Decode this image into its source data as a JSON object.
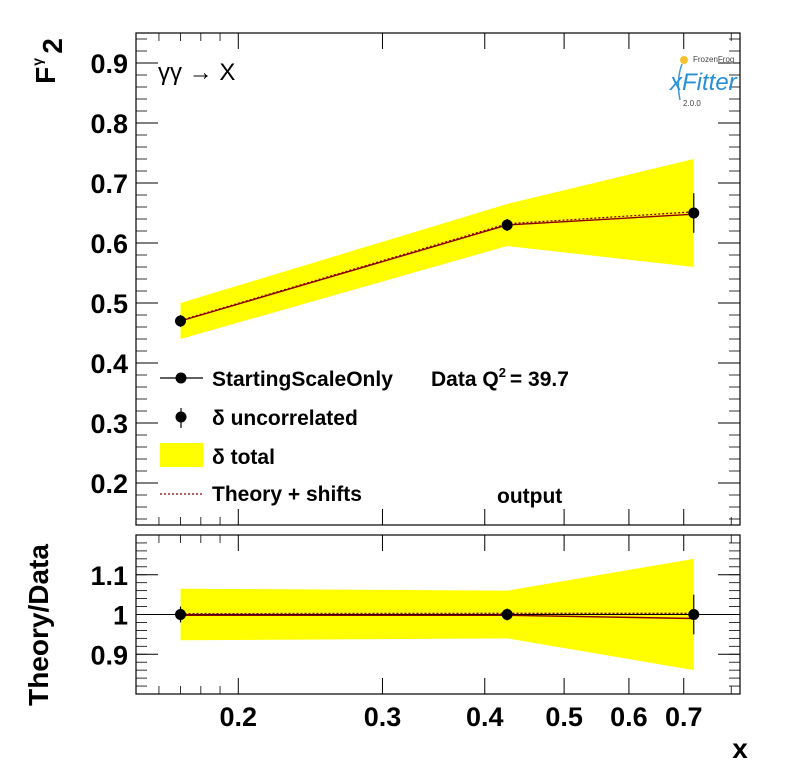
{
  "chart_data": [
    {
      "type": "line",
      "panel": "main",
      "ylabel": "F",
      "ylabel_sub": "2",
      "ylabel_sup": "γ",
      "process_label": "γγ → X",
      "x_scale": "log",
      "xlim": [
        0.15,
        0.82
      ],
      "ylim": [
        0.13,
        0.95
      ],
      "ytick_labels": [
        "0.2",
        "0.3",
        "0.4",
        "0.5",
        "0.6",
        "0.7",
        "0.8",
        "0.9"
      ],
      "yticks": [
        0.2,
        0.3,
        0.4,
        0.5,
        0.6,
        0.7,
        0.8,
        0.9
      ],
      "x": [
        0.17,
        0.426,
        0.72
      ],
      "series": [
        {
          "name": "StartingScaleOnly",
          "values": [
            0.47,
            0.63,
            0.648
          ]
        },
        {
          "name": "δ uncorrelated",
          "values": [
            0.47,
            0.63,
            0.65
          ],
          "errors": [
            0.01,
            0.01,
            0.033
          ]
        },
        {
          "name": "δ total",
          "lower": [
            0.44,
            0.595,
            0.56
          ],
          "upper": [
            0.5,
            0.665,
            0.74
          ]
        },
        {
          "name": "Theory + shifts",
          "values": [
            0.471,
            0.632,
            0.652
          ]
        }
      ],
      "legend_header": "Data Q",
      "legend_header_sup": "2",
      "legend_header_value": "= 39.7",
      "annotation": "output",
      "legend_position": "bottom-left",
      "colors": {
        "band": "#ffff00",
        "theory": "#8b0000",
        "data": "#000000"
      }
    },
    {
      "type": "line",
      "panel": "ratio",
      "ylabel": "Theory/Data",
      "xlabel": "x",
      "x_scale": "log",
      "xlim": [
        0.15,
        0.82
      ],
      "ylim": [
        0.8,
        1.2
      ],
      "ytick_labels": [
        "0.9",
        "1",
        "1.1"
      ],
      "yticks": [
        0.9,
        1.0,
        1.1
      ],
      "xtick_labels": [
        "0.2",
        "0.3",
        "0.4",
        "0.5",
        "0.6",
        "0.7"
      ],
      "xticks": [
        0.2,
        0.3,
        0.4,
        0.5,
        0.6,
        0.7
      ],
      "x": [
        0.17,
        0.426,
        0.72
      ],
      "series": [
        {
          "name": "StartingScaleOnly",
          "values": [
            0.998,
            0.998,
            0.99
          ]
        },
        {
          "name": "δ uncorrelated",
          "values": [
            1.0,
            1.0,
            1.0
          ],
          "errors": [
            0.02,
            0.015,
            0.05
          ]
        },
        {
          "name": "δ total",
          "lower": [
            0.935,
            0.94,
            0.86
          ],
          "upper": [
            1.065,
            1.06,
            1.14
          ]
        },
        {
          "name": "Theory + shifts",
          "values": [
            1.002,
            1.003,
            1.003
          ]
        }
      ]
    }
  ],
  "legend": {
    "entries": [
      {
        "label": "StartingScaleOnly",
        "symbol": "line-marker"
      },
      {
        "label": "δ uncorrelated",
        "symbol": "marker-error"
      },
      {
        "label": "δ total",
        "symbol": "band"
      },
      {
        "label": "Theory + shifts",
        "symbol": "dotted-line"
      }
    ]
  },
  "logo": {
    "top_text": "FrozenFrog",
    "main_text": "xFitter",
    "version": "2.0.0"
  }
}
